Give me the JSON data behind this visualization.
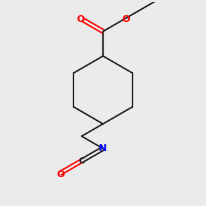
{
  "bg_color": "#ebebeb",
  "bond_color": "#1a1a1a",
  "oxygen_color": "#ff0000",
  "nitrogen_color": "#0000ff",
  "carbon_color": "#1a1a1a",
  "line_width": 1.6,
  "figsize": [
    3.0,
    3.0
  ],
  "dpi": 100,
  "xlim": [
    -1.2,
    1.2
  ],
  "ylim": [
    -1.7,
    1.4
  ]
}
